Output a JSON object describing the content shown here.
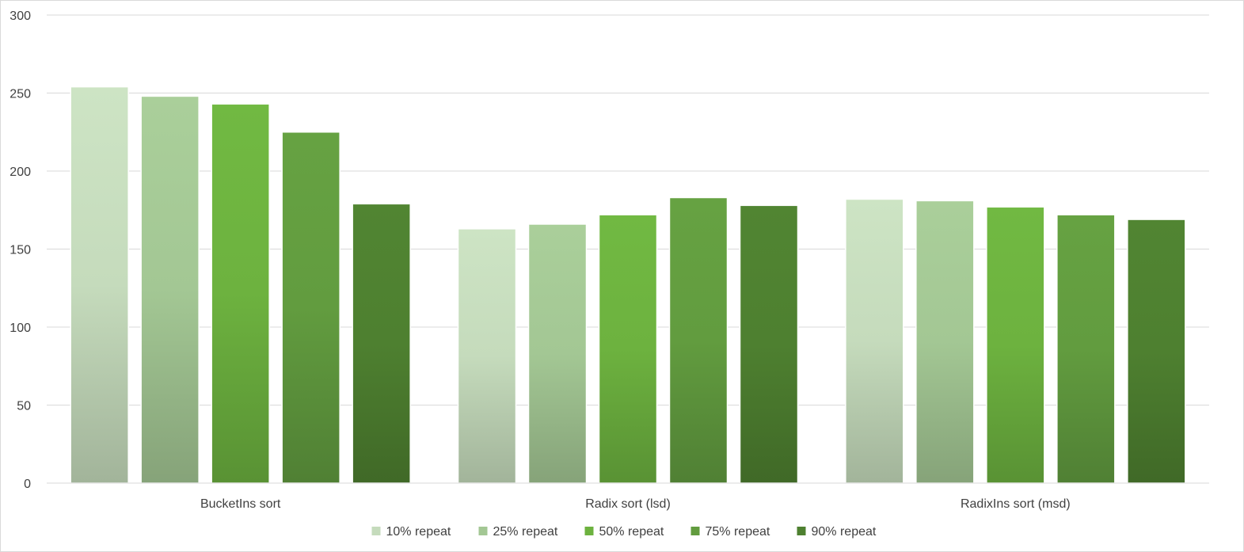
{
  "chart_data": {
    "type": "bar",
    "categories": [
      "BucketIns sort",
      "Radix sort (lsd)",
      "RadixIns sort (msd)"
    ],
    "series": [
      {
        "name": "10% repeat",
        "values": [
          254,
          163,
          182
        ],
        "color": "#c5dbbc"
      },
      {
        "name": "25% repeat",
        "values": [
          248,
          166,
          181
        ],
        "color": "#a3c794"
      },
      {
        "name": "50% repeat",
        "values": [
          243,
          172,
          177
        ],
        "color": "#6db23f"
      },
      {
        "name": "75% repeat",
        "values": [
          225,
          183,
          172
        ],
        "color": "#629c3f"
      },
      {
        "name": "90% repeat",
        "values": [
          179,
          178,
          169
        ],
        "color": "#4e8030"
      }
    ],
    "ylim": [
      0,
      300
    ],
    "yticks": [
      0,
      50,
      100,
      150,
      200,
      250,
      300
    ],
    "grid": true,
    "legend": "bottom-center",
    "title": "",
    "xlabel": "",
    "ylabel": ""
  }
}
